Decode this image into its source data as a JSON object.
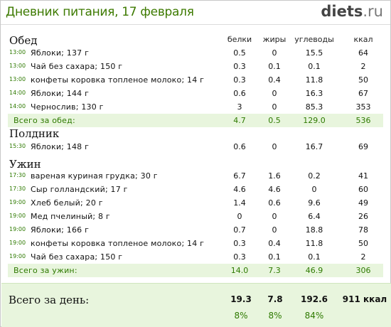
{
  "header": {
    "title": "Дневник питания, 17 февраля",
    "logo_main": "diets",
    "logo_tld": ".ru"
  },
  "columns": [
    "белки",
    "жиры",
    "углеводы",
    "ккал"
  ],
  "meals": [
    {
      "name": "Обед",
      "items": [
        {
          "time": "13:00",
          "name": "Яблоки; 137 г",
          "protein": "0.5",
          "fat": "0",
          "carbs": "15.5",
          "kcal": "64"
        },
        {
          "time": "13:00",
          "name": "Чай без сахара; 150 г",
          "protein": "0.3",
          "fat": "0.1",
          "carbs": "0.1",
          "kcal": "2"
        },
        {
          "time": "13:00",
          "name": "конфеты коровка топленое молоко; 14 г",
          "protein": "0.3",
          "fat": "0.4",
          "carbs": "11.8",
          "kcal": "50"
        },
        {
          "time": "14:00",
          "name": "Яблоки; 144 г",
          "protein": "0.6",
          "fat": "0",
          "carbs": "16.3",
          "kcal": "67"
        },
        {
          "time": "14:00",
          "name": "Чернослив; 130 г",
          "protein": "3",
          "fat": "0",
          "carbs": "85.3",
          "kcal": "353"
        }
      ],
      "total": {
        "label": "Всего за обед:",
        "protein": "4.7",
        "fat": "0.5",
        "carbs": "129.0",
        "kcal": "536"
      }
    },
    {
      "name": "Полдник",
      "items": [
        {
          "time": "15:30",
          "name": "Яблоки; 148 г",
          "protein": "0.6",
          "fat": "0",
          "carbs": "16.7",
          "kcal": "69"
        }
      ]
    },
    {
      "name": "Ужин",
      "items": [
        {
          "time": "17:30",
          "name": "вареная куриная грудка; 30 г",
          "protein": "6.7",
          "fat": "1.6",
          "carbs": "0.2",
          "kcal": "41"
        },
        {
          "time": "17:30",
          "name": "Сыр голландский; 17 г",
          "protein": "4.6",
          "fat": "4.6",
          "carbs": "0",
          "kcal": "60"
        },
        {
          "time": "19:00",
          "name": "Хлеб белый; 20 г",
          "protein": "1.4",
          "fat": "0.6",
          "carbs": "9.6",
          "kcal": "49"
        },
        {
          "time": "19:00",
          "name": "Мед пчелиный; 8 г",
          "protein": "0",
          "fat": "0",
          "carbs": "6.4",
          "kcal": "26"
        },
        {
          "time": "19:00",
          "name": "Яблоки; 166 г",
          "protein": "0.7",
          "fat": "0",
          "carbs": "18.8",
          "kcal": "78"
        },
        {
          "time": "19:00",
          "name": "конфеты коровка топленое молоко; 14 г",
          "protein": "0.3",
          "fat": "0.4",
          "carbs": "11.8",
          "kcal": "50"
        },
        {
          "time": "19:00",
          "name": "Чай без сахара; 150 г",
          "protein": "0.3",
          "fat": "0.1",
          "carbs": "0.1",
          "kcal": "2"
        }
      ],
      "total": {
        "label": "Всего за ужин:",
        "protein": "14.0",
        "fat": "7.3",
        "carbs": "46.9",
        "kcal": "306"
      }
    }
  ],
  "day_total": {
    "label": "Всего за день:",
    "protein": "19.3",
    "fat": "7.8",
    "carbs": "192.6",
    "kcal": "911 ккал",
    "protein_pct": "8%",
    "fat_pct": "8%",
    "carbs_pct": "84%"
  },
  "colors": {
    "title": "#3d7a00",
    "accent_green": "#2e7a00",
    "total_bg": "#e8f5dd"
  }
}
